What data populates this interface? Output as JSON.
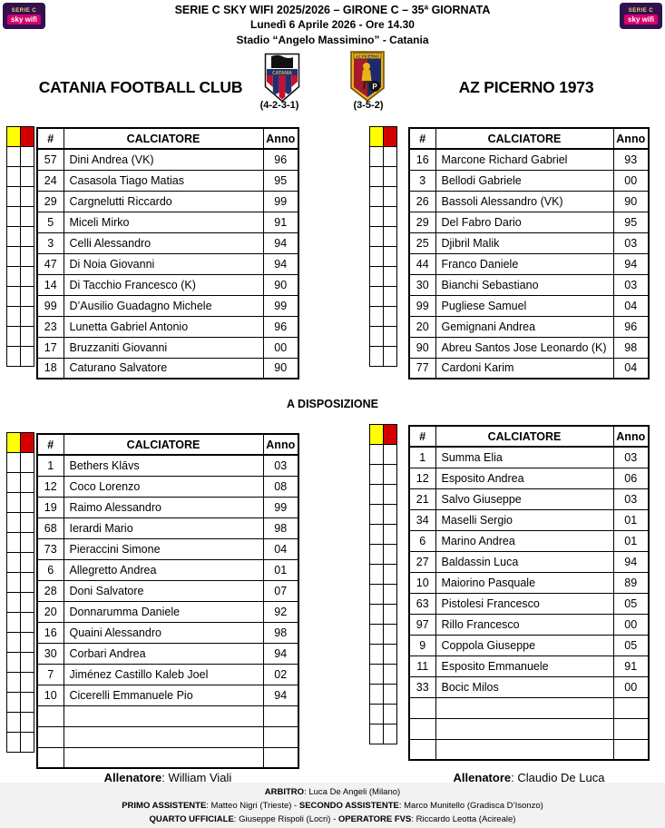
{
  "header": {
    "line1": "SERIE C SKY WIFI 2025/2026 – GIRONE C – 35ª GIORNATA",
    "line2": "Lunedì 6 Aprile 2026 - Ore 14.30",
    "line3": "Stadio “Angelo Massimino” - Catania",
    "logo_text_top": "SERIE C",
    "logo_text_bottom": "sky wifi"
  },
  "teams": {
    "home": {
      "name": "CATANIA FOOTBALL CLUB",
      "formation": "(4-2-3-1)"
    },
    "away": {
      "name": "AZ PICERNO 1973",
      "formation": "(3-5-2)"
    }
  },
  "table_headers": {
    "num": "#",
    "player": "CALCIATORE",
    "year": "Anno"
  },
  "sections": {
    "bench_title": "A DISPOSIZIONE"
  },
  "card_grid": {
    "xi_rows": 11,
    "bench_rows": 15
  },
  "colors": {
    "yellow_card": "#ffff00",
    "red_card": "#d40000",
    "logo_purple": "#31124f",
    "logo_magenta": "#d6006e"
  },
  "home_xi": [
    {
      "num": "57",
      "name": "Dini Andrea (VK)",
      "anno": "96"
    },
    {
      "num": "24",
      "name": "Casasola Tiago Matias",
      "anno": "95"
    },
    {
      "num": "29",
      "name": "Cargnelutti Riccardo",
      "anno": "99"
    },
    {
      "num": "5",
      "name": "Miceli Mirko",
      "anno": "91"
    },
    {
      "num": "3",
      "name": "Celli Alessandro",
      "anno": "94"
    },
    {
      "num": "47",
      "name": "Di Noia Giovanni",
      "anno": "94"
    },
    {
      "num": "14",
      "name": "Di Tacchio Francesco (K)",
      "anno": "90"
    },
    {
      "num": "99",
      "name": "D’Ausilio Guadagno Michele",
      "anno": "99"
    },
    {
      "num": "23",
      "name": "Lunetta Gabriel Antonio",
      "anno": "96"
    },
    {
      "num": "17",
      "name": "Bruzzaniti Giovanni",
      "anno": "00"
    },
    {
      "num": "18",
      "name": "Caturano Salvatore",
      "anno": "90"
    }
  ],
  "away_xi": [
    {
      "num": "16",
      "name": "Marcone Richard Gabriel",
      "anno": "93"
    },
    {
      "num": "3",
      "name": "Bellodi Gabriele",
      "anno": "00"
    },
    {
      "num": "26",
      "name": "Bassoli Alessandro (VK)",
      "anno": "90"
    },
    {
      "num": "29",
      "name": "Del Fabro Dario",
      "anno": "95"
    },
    {
      "num": "25",
      "name": "Djibril Malik",
      "anno": "03"
    },
    {
      "num": "44",
      "name": "Franco Daniele",
      "anno": "94"
    },
    {
      "num": "30",
      "name": "Bianchi Sebastiano",
      "anno": "03"
    },
    {
      "num": "99",
      "name": "Pugliese Samuel",
      "anno": "04"
    },
    {
      "num": "20",
      "name": "Gemignani Andrea",
      "anno": "96"
    },
    {
      "num": "90",
      "name": "Abreu Santos Jose Leonardo (K)",
      "anno": "98"
    },
    {
      "num": "77",
      "name": "Cardoni Karim",
      "anno": "04"
    }
  ],
  "home_bench": [
    {
      "num": "1",
      "name": "Bethers Klāvs",
      "anno": "03"
    },
    {
      "num": "12",
      "name": "Coco Lorenzo",
      "anno": "08"
    },
    {
      "num": "19",
      "name": "Raimo Alessandro",
      "anno": "99"
    },
    {
      "num": "68",
      "name": "Ierardi Mario",
      "anno": "98"
    },
    {
      "num": "73",
      "name": "Pieraccini Simone",
      "anno": "04"
    },
    {
      "num": "6",
      "name": "Allegretto Andrea",
      "anno": "01"
    },
    {
      "num": "28",
      "name": "Doni Salvatore",
      "anno": "07"
    },
    {
      "num": "20",
      "name": "Donnarumma Daniele",
      "anno": "92"
    },
    {
      "num": "16",
      "name": "Quaini Alessandro",
      "anno": "98"
    },
    {
      "num": "30",
      "name": "Corbari Andrea",
      "anno": "94"
    },
    {
      "num": "7",
      "name": "Jiménez Castillo Kaleb Joel",
      "anno": "02"
    },
    {
      "num": "10",
      "name": "Cicerelli Emmanuele Pio",
      "anno": "94"
    },
    {
      "num": "",
      "name": "",
      "anno": ""
    },
    {
      "num": "",
      "name": "",
      "anno": ""
    },
    {
      "num": "",
      "name": "",
      "anno": ""
    }
  ],
  "away_bench": [
    {
      "num": "1",
      "name": "Summa Elia",
      "anno": "03"
    },
    {
      "num": "12",
      "name": "Esposito Andrea",
      "anno": "06"
    },
    {
      "num": "21",
      "name": "Salvo Giuseppe",
      "anno": "03"
    },
    {
      "num": "34",
      "name": "Maselli Sergio",
      "anno": "01"
    },
    {
      "num": "6",
      "name": "Marino Andrea",
      "anno": "01"
    },
    {
      "num": "27",
      "name": "Baldassin Luca",
      "anno": "94"
    },
    {
      "num": "10",
      "name": "Maiorino Pasquale",
      "anno": "89"
    },
    {
      "num": "63",
      "name": "Pistolesi Francesco",
      "anno": "05"
    },
    {
      "num": "97",
      "name": "Rillo Francesco",
      "anno": "00"
    },
    {
      "num": "9",
      "name": "Coppola Giuseppe",
      "anno": "05"
    },
    {
      "num": "11",
      "name": "Esposito Emmanuele",
      "anno": "91"
    },
    {
      "num": "33",
      "name": "Bocic Milos",
      "anno": "00"
    },
    {
      "num": "",
      "name": "",
      "anno": ""
    },
    {
      "num": "",
      "name": "",
      "anno": ""
    },
    {
      "num": "",
      "name": "",
      "anno": ""
    }
  ],
  "coaches": {
    "label": "Allenatore",
    "home": ": William Viali",
    "away": ": Claudio De Luca"
  },
  "officials": {
    "arbitro_label": "ARBITRO",
    "arbitro": ": Luca De Angeli (Milano)",
    "primo_label": "PRIMO ASSISTENTE",
    "primo": ": Matteo Nigri (Trieste) - ",
    "secondo_label": "SECONDO ASSISTENTE",
    "secondo": ": Marco Munitello (Gradisca D’Isonzo)",
    "quarto_label": "QUARTO UFFICIALE",
    "quarto": ": Giuseppe Rispoli (Locri) - ",
    "fvs_label": "OPERATORE FVS",
    "fvs": ": Riccardo Leotta (Acireale)"
  }
}
